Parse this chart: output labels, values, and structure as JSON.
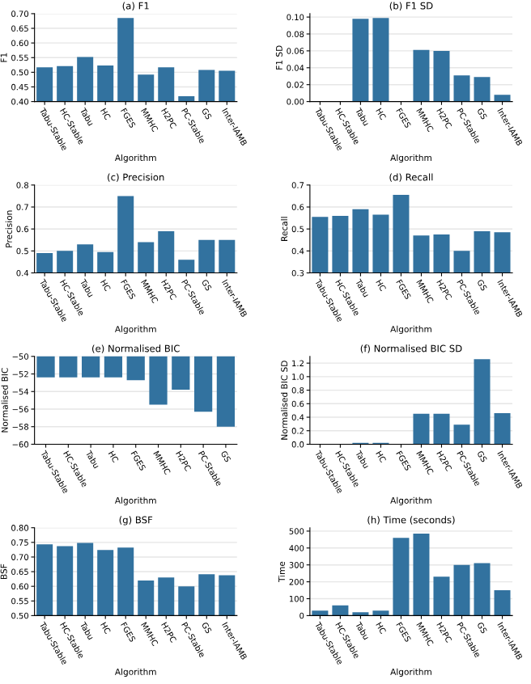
{
  "chart_data": [
    {
      "type": "bar",
      "title": "(a) F1",
      "xlabel": "Algorithm",
      "ylabel": "F1",
      "color": "#32729f",
      "grid": "y",
      "categories": [
        "Tabu-Stable",
        "HC-Stable",
        "Tabu",
        "HC",
        "FGES",
        "MMHC",
        "H2PC",
        "PC-Stable",
        "GS",
        "Inter-IAMB"
      ],
      "values": [
        0.517,
        0.521,
        0.552,
        0.523,
        0.685,
        0.492,
        0.517,
        0.418,
        0.508,
        0.505
      ],
      "ylim": [
        0.4,
        0.7
      ],
      "yticks": [
        {
          "value": 0.4,
          "label": "0.40"
        },
        {
          "value": 0.45,
          "label": "0.45"
        },
        {
          "value": 0.5,
          "label": "0.50"
        },
        {
          "value": 0.55,
          "label": "0.55"
        },
        {
          "value": 0.6,
          "label": "0.60"
        },
        {
          "value": 0.65,
          "label": "0.65"
        },
        {
          "value": 0.7,
          "label": "0.70"
        }
      ]
    },
    {
      "type": "bar",
      "title": "(b) F1 SD",
      "xlabel": "Algorithm",
      "ylabel": "F1 SD",
      "color": "#32729f",
      "grid": "y",
      "categories": [
        "Tabu-Stable",
        "HC-Stable",
        "Tabu",
        "HC",
        "FGES",
        "MMHC",
        "H2PC",
        "PC-Stable",
        "GS",
        "Inter-IAMB"
      ],
      "values": [
        0,
        0,
        0.098,
        0.099,
        0,
        0.061,
        0.06,
        0.031,
        0.029,
        0.008
      ],
      "ylim": [
        0,
        0.104
      ],
      "yticks": [
        {
          "value": 0,
          "label": "0.00"
        },
        {
          "value": 0.02,
          "label": "0.02"
        },
        {
          "value": 0.04,
          "label": "0.04"
        },
        {
          "value": 0.06,
          "label": "0.06"
        },
        {
          "value": 0.08,
          "label": "0.08"
        },
        {
          "value": 0.1,
          "label": "0.10"
        }
      ]
    },
    {
      "type": "bar",
      "title": "(c) Precision",
      "xlabel": "Algorithm",
      "ylabel": "Precision",
      "color": "#32729f",
      "grid": "y",
      "categories": [
        "Tabu-Stable",
        "HC-Stable",
        "Tabu",
        "HC",
        "FGES",
        "MMHC",
        "H2PC",
        "PC-Stable",
        "GS",
        "Inter-IAMB"
      ],
      "values": [
        0.49,
        0.5,
        0.53,
        0.495,
        0.75,
        0.54,
        0.59,
        0.46,
        0.55,
        0.55
      ],
      "ylim": [
        0.4,
        0.8
      ],
      "yticks": [
        0.4,
        0.5,
        0.6,
        0.7,
        0.8
      ]
    },
    {
      "type": "bar",
      "title": "(d) Recall",
      "xlabel": "Algorithm",
      "ylabel": "Recall",
      "color": "#32729f",
      "grid": "y",
      "categories": [
        "Tabu-Stable",
        "HC-Stable",
        "Tabu",
        "HC",
        "FGES",
        "MMHC",
        "H2PC",
        "PC-Stable",
        "GS",
        "Inter-IAMB"
      ],
      "values": [
        0.555,
        0.56,
        0.59,
        0.565,
        0.655,
        0.47,
        0.475,
        0.4,
        0.49,
        0.485
      ],
      "ylim": [
        0.3,
        0.7
      ],
      "yticks": [
        0.3,
        0.4,
        0.5,
        0.6,
        0.7
      ]
    },
    {
      "type": "bar",
      "title": "(e) Normalised BIC",
      "xlabel": "Algorithm",
      "ylabel": "Normalised BIC",
      "color": "#32729f",
      "grid": "y",
      "categories": [
        "Tabu-Stable",
        "HC-Stable",
        "Tabu",
        "HC",
        "FGES",
        "MMHC",
        "H2PC",
        "PC-Stable",
        "GS"
      ],
      "values": [
        -52.4,
        -52.4,
        -52.4,
        -52.4,
        -52.7,
        -55.5,
        -53.8,
        -56.3,
        -58.0
      ],
      "ylim": [
        -60,
        -50
      ],
      "yticks": [
        {
          "value": -60,
          "label": "−60"
        },
        {
          "value": -58,
          "label": "−58"
        },
        {
          "value": -56,
          "label": "−56"
        },
        {
          "value": -54,
          "label": "−54"
        },
        {
          "value": -52,
          "label": "−52"
        },
        {
          "value": -50,
          "label": "−50"
        }
      ]
    },
    {
      "type": "bar",
      "title": "(f) Normalised BIC SD",
      "xlabel": "Algorithm",
      "ylabel": "Normalised BIC SD",
      "color": "#32729f",
      "grid": "y",
      "categories": [
        "Tabu-Stable",
        "HC-Stable",
        "Tabu",
        "HC",
        "FGES",
        "MMHC",
        "H2PC",
        "PC-Stable",
        "GS",
        "Inter-IAMB"
      ],
      "values": [
        0,
        0,
        0.02,
        0.02,
        0,
        0.45,
        0.45,
        0.29,
        1.26,
        0.46
      ],
      "ylim": [
        0,
        1.3
      ],
      "yticks": [
        {
          "value": 0,
          "label": "0.0"
        },
        0.2,
        0.4,
        0.6,
        0.8,
        {
          "value": 1,
          "label": "1.0"
        },
        1.2
      ]
    },
    {
      "type": "bar",
      "title": "(g) BSF",
      "xlabel": "Algorithm",
      "ylabel": "BSF",
      "color": "#32729f",
      "grid": "y",
      "categories": [
        "Tabu-Stable",
        "HC-Stable",
        "Tabu",
        "HC",
        "FGES",
        "MMHC",
        "H2PC",
        "PC-Stable",
        "GS",
        "Inter-IAMB"
      ],
      "values": [
        0.743,
        0.737,
        0.748,
        0.724,
        0.732,
        0.62,
        0.63,
        0.6,
        0.641,
        0.638
      ],
      "ylim": [
        0.5,
        0.8
      ],
      "yticks": [
        {
          "value": 0.5,
          "label": "0.50"
        },
        {
          "value": 0.55,
          "label": "0.55"
        },
        {
          "value": 0.6,
          "label": "0.60"
        },
        {
          "value": 0.65,
          "label": "0.65"
        },
        {
          "value": 0.7,
          "label": "0.70"
        },
        {
          "value": 0.75,
          "label": "0.75"
        },
        {
          "value": 0.8,
          "label": "0.80"
        }
      ]
    },
    {
      "type": "bar",
      "title": "(h) Time (seconds)",
      "xlabel": "Algorithm",
      "ylabel": "Time",
      "color": "#32729f",
      "grid": "y",
      "categories": [
        "Tabu-Stable",
        "HC-Stable",
        "Tabu",
        "HC",
        "FGES",
        "MMHC",
        "H2PC",
        "PC-Stable",
        "GS",
        "Inter-IAMB"
      ],
      "values": [
        30,
        60,
        20,
        30,
        460,
        485,
        230,
        300,
        310,
        150
      ],
      "ylim": [
        0,
        520
      ],
      "yticks": [
        0,
        100,
        200,
        300,
        400,
        500
      ]
    }
  ]
}
